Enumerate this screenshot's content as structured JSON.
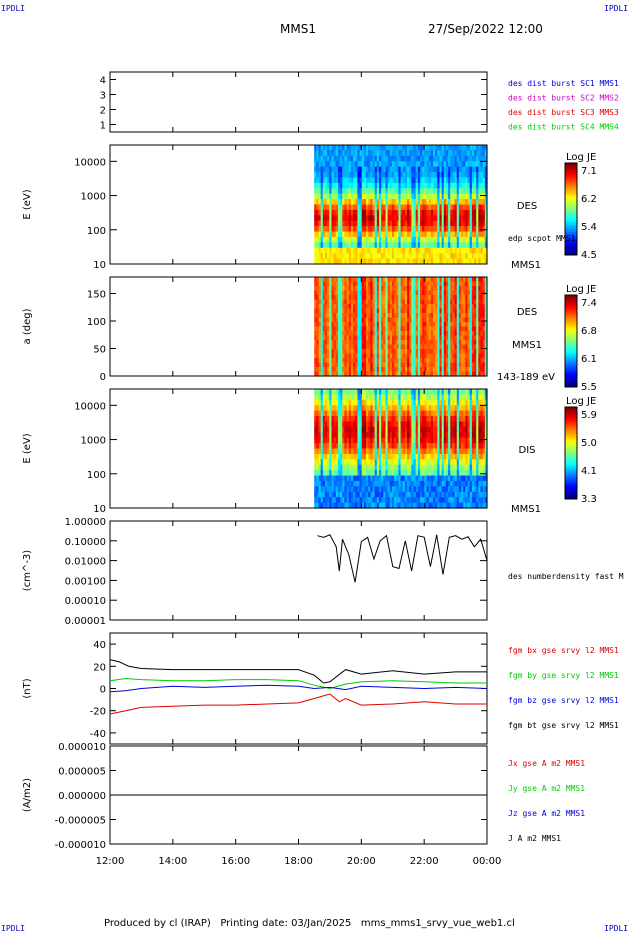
{
  "corner_label": "IPDLI",
  "header": {
    "spacecraft": "MMS1",
    "datetime": "27/Sep/2022 12:00"
  },
  "footer": "Produced by cl (IRAP)   Printing date: 03/Jan/2025   mms_mms1_srvy_vue_web1.cl",
  "colors": {
    "red": "#dd0000",
    "green": "#00cc00",
    "blue": "#0000dd",
    "magenta": "#cc00cc",
    "black": "#000000"
  },
  "chart_data": {
    "x_ticks": [
      "12:00",
      "14:00",
      "16:00",
      "18:00",
      "20:00",
      "22:00",
      "00:00"
    ],
    "x_range_hours": [
      12,
      24
    ],
    "data_start_hour": 18.5,
    "panels": [
      {
        "type": "scatter",
        "ylim": [
          0.5,
          4.5
        ],
        "y_ticks": [
          "1",
          "2",
          "3",
          "4"
        ],
        "ylabel": "",
        "legend": [
          {
            "text": "des dist burst SC1 MMS1",
            "color": "#0000dd"
          },
          {
            "text": "des dist burst SC2 MMS2",
            "color": "#cc00cc"
          },
          {
            "text": "des dist burst SC3 MMS3",
            "color": "#dd0000"
          },
          {
            "text": "des dist burst SC4 MMS4",
            "color": "#00cc00"
          }
        ]
      },
      {
        "type": "heatmap",
        "ylabel": "E (eV)",
        "ylim": [
          10,
          30000
        ],
        "log_y": true,
        "y_ticks": [
          "10000",
          "1000",
          "100",
          "10"
        ],
        "instrument": "DES",
        "sub_label": "edp scpot MMS1",
        "bottom_label": "MMS1",
        "colorbar": {
          "title": "Log JE",
          "ticks": [
            "7.1",
            "6.2",
            "5.4",
            "4.5"
          ]
        }
      },
      {
        "type": "heatmap",
        "ylabel": "a (deg)",
        "ylim": [
          0,
          180
        ],
        "y_ticks": [
          "150",
          "100",
          "50",
          "0"
        ],
        "instrument": "DES",
        "sub_label": "MMS1",
        "bottom_label": "143-189 eV",
        "colorbar": {
          "title": "Log JE",
          "ticks": [
            "7.4",
            "6.8",
            "6.1",
            "5.5"
          ]
        }
      },
      {
        "type": "heatmap",
        "ylabel": "E (eV)",
        "ylim": [
          10,
          30000
        ],
        "log_y": true,
        "y_ticks": [
          "10000",
          "1000",
          "100",
          "10"
        ],
        "instrument": "DIS",
        "bottom_label": "MMS1",
        "colorbar": {
          "title": "Log JE",
          "ticks": [
            "5.9",
            "5.0",
            "4.1",
            "3.3"
          ]
        }
      },
      {
        "type": "line",
        "ylabel": "(cm^-3)",
        "ylim": [
          1e-05,
          1.0
        ],
        "log_y": true,
        "y_ticks": [
          "1.00000",
          "0.10000",
          "0.01000",
          "0.00100",
          "0.00010",
          "0.00001"
        ],
        "legend": [
          {
            "text": "des numberdensity fast M",
            "color": "#000000"
          }
        ],
        "series": [
          {
            "name": "des numberdensity fast M",
            "x": [
              18.6,
              18.8,
              19.0,
              19.2,
              19.3,
              19.4,
              19.6,
              19.8,
              20.0,
              20.2,
              20.4,
              20.6,
              20.8,
              21.0,
              21.2,
              21.4,
              21.6,
              21.8,
              22.0,
              22.2,
              22.4,
              22.6,
              22.8,
              23.0,
              23.2,
              23.4,
              23.6,
              23.8,
              24.0
            ],
            "y": [
              0.18,
              0.15,
              0.2,
              0.05,
              0.003,
              0.12,
              0.02,
              0.0008,
              0.09,
              0.15,
              0.012,
              0.1,
              0.18,
              0.005,
              0.004,
              0.1,
              0.003,
              0.18,
              0.15,
              0.005,
              0.2,
              0.002,
              0.15,
              0.18,
              0.12,
              0.16,
              0.05,
              0.12,
              0.01
            ]
          }
        ]
      },
      {
        "type": "line",
        "ylabel": "(nT)",
        "ylim": [
          -50,
          50
        ],
        "y_ticks": [
          "40",
          "20",
          "0",
          "-20",
          "-40"
        ],
        "legend": [
          {
            "text": "fgm bx gse srvy l2 MMS1",
            "color": "#dd0000"
          },
          {
            "text": "fgm by gse srvy l2 MMS1",
            "color": "#00cc00"
          },
          {
            "text": "fgm bz gse srvy l2 MMS1",
            "color": "#0000dd"
          },
          {
            "text": "fgm bt gse srvy l2 MMS1",
            "color": "#000000"
          }
        ],
        "series": [
          {
            "name": "fgm bx gse srvy l2 MMS1",
            "x": [
              12.0,
              12.5,
              13.0,
              14.0,
              15.0,
              16.0,
              17.0,
              18.0,
              18.5,
              19.0,
              19.3,
              19.5,
              20.0,
              21.0,
              22.0,
              23.0,
              24.0
            ],
            "y": [
              -23,
              -20,
              -17,
              -16,
              -15,
              -15,
              -14,
              -13,
              -9,
              -5,
              -12,
              -9,
              -15,
              -14,
              -12,
              -14,
              -14
            ]
          },
          {
            "name": "fgm by gse srvy l2 MMS1",
            "x": [
              12.0,
              12.5,
              13.0,
              14.0,
              15.0,
              16.0,
              17.0,
              18.0,
              18.5,
              19.0,
              19.5,
              20.0,
              21.0,
              22.0,
              23.0,
              24.0
            ],
            "y": [
              7,
              9,
              8,
              7,
              7,
              8,
              8,
              7,
              3,
              0,
              4,
              6,
              7,
              6,
              5,
              5
            ]
          },
          {
            "name": "fgm bz gse srvy l2 MMS1",
            "x": [
              12.0,
              12.5,
              13.0,
              14.0,
              15.0,
              16.0,
              17.0,
              18.0,
              18.5,
              19.0,
              19.5,
              20.0,
              21.0,
              22.0,
              23.0,
              24.0
            ],
            "y": [
              -3,
              -2,
              0,
              2,
              1,
              2,
              3,
              2,
              0,
              1,
              -1,
              2,
              1,
              0,
              1,
              0
            ]
          },
          {
            "name": "fgm bt gse srvy l2 MMS1",
            "x": [
              12.0,
              12.3,
              12.6,
              13.0,
              14.0,
              15.0,
              16.0,
              17.0,
              18.0,
              18.5,
              18.8,
              19.0,
              19.5,
              20.0,
              21.0,
              22.0,
              23.0,
              24.0
            ],
            "y": [
              26,
              24,
              20,
              18,
              17,
              17,
              17,
              17,
              17,
              12,
              5,
              6,
              17,
              13,
              16,
              13,
              15,
              15
            ]
          }
        ]
      },
      {
        "type": "line",
        "ylabel": "(A/m2)",
        "ylim": [
          -1e-05,
          1e-05
        ],
        "y_ticks": [
          "0.000010",
          "0.000005",
          "0.000000",
          "-0.000005",
          "-0.000010"
        ],
        "legend": [
          {
            "text": "Jx gse A m2 MMS1",
            "color": "#dd0000"
          },
          {
            "text": "Jy gse A m2 MMS1",
            "color": "#00cc00"
          },
          {
            "text": "Jz gse A m2 MMS1",
            "color": "#0000dd"
          },
          {
            "text": "J A m2 MMS1",
            "color": "#000000"
          }
        ],
        "series": [
          {
            "name": "J A m2 MMS1",
            "x": [
              12.0,
              24.0
            ],
            "y": [
              0.0,
              0.0
            ]
          }
        ]
      }
    ]
  }
}
